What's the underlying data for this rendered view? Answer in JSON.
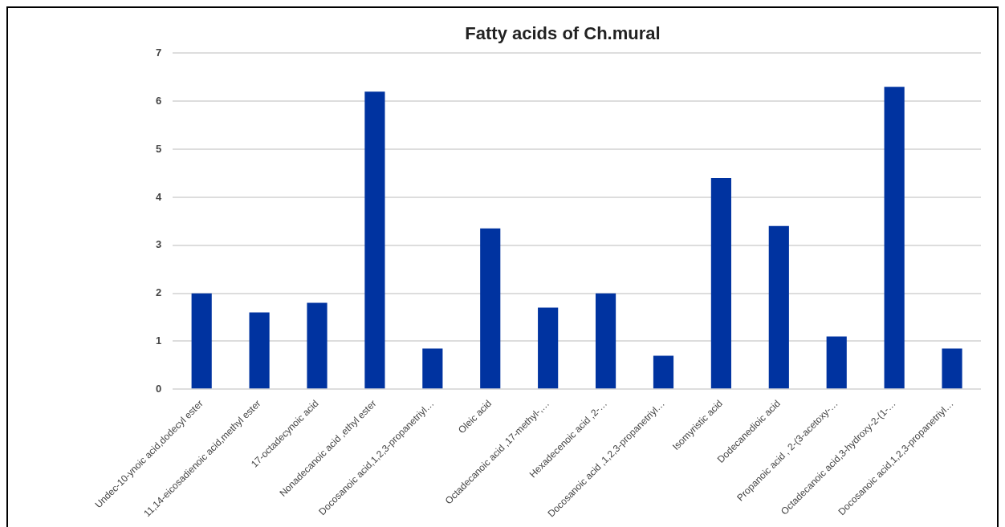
{
  "chart_data": {
    "type": "bar",
    "title": "Fatty acids of Ch.mural",
    "categories": [
      "Undec-10-ynoic acid,dodecyl ester",
      "11,14-eicosadienoic acid,methyl ester",
      "17-octadecynoic acid",
      "Nonadecanoic acid ,ethyl ester",
      "Docosanoic acid,1,2,3-propanetriyl…",
      "Oleic acid",
      "Octadecanoic acid ,17-methyl-,…",
      "Hexadecenoic acid ,2-…",
      "Docosanoic acid ,1,2,3-propanetriyl…",
      "Isomyristic acid",
      "Dodecanedioic acid",
      "Propanoic acid , 2-(3-acetoxy-…",
      "Octadecanoic acid,3-hydroxy-2-(1-…",
      "Docosanoic acid,1,2,3-propanetriyl…"
    ],
    "values": [
      2.0,
      1.6,
      1.8,
      6.2,
      0.85,
      3.35,
      1.7,
      2.0,
      0.7,
      4.4,
      3.4,
      1.1,
      6.3,
      0.85
    ],
    "color": "#0033a0",
    "ylim": [
      0,
      7
    ],
    "yticks": [
      0,
      1,
      2,
      3,
      4,
      5,
      6,
      7
    ],
    "grid": "y",
    "legend": false
  }
}
